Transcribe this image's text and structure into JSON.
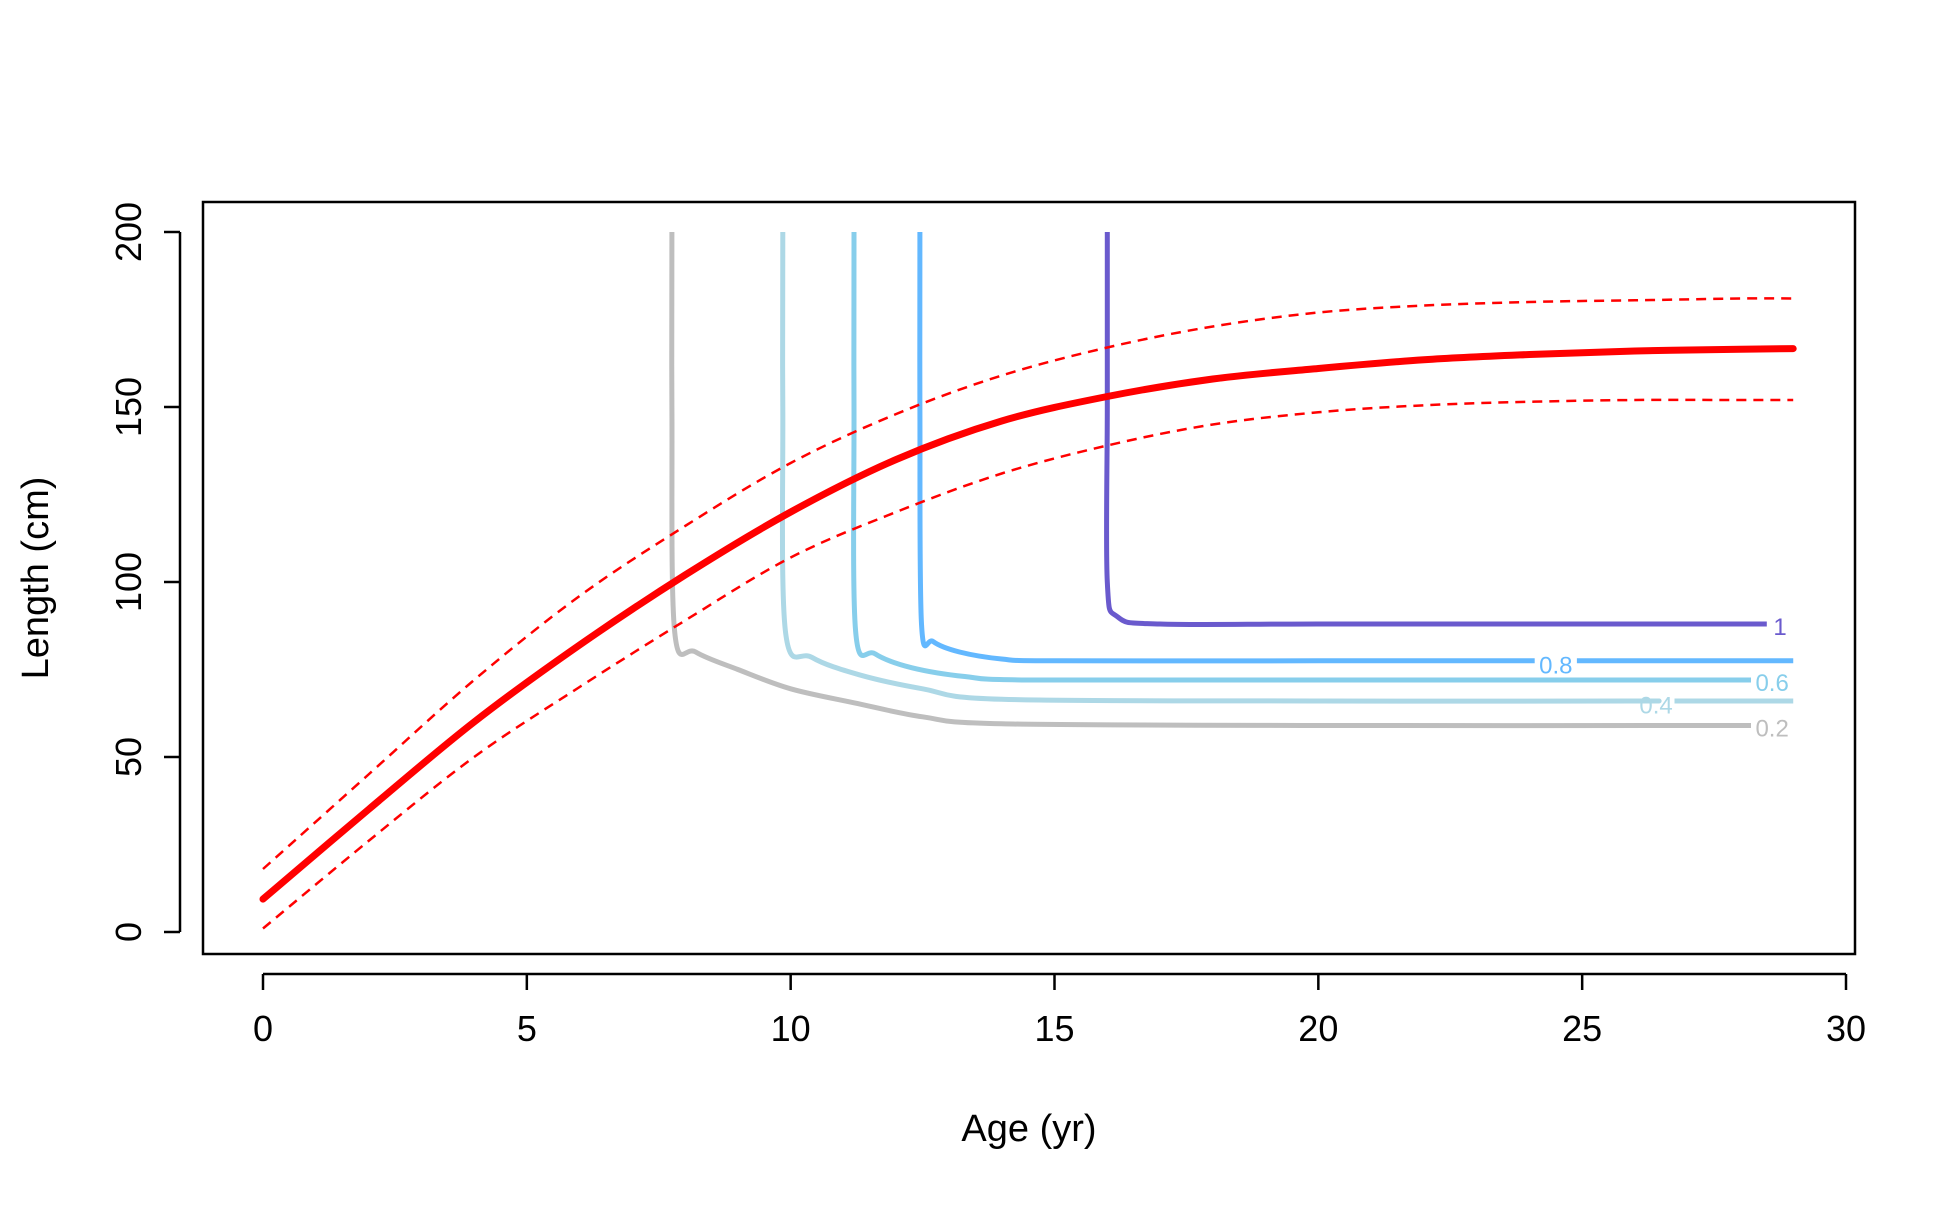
{
  "chart_data": {
    "type": "line",
    "title": "",
    "xlabel": "Age (yr)",
    "ylabel": "Length (cm)",
    "xlim": [
      0,
      30
    ],
    "ylim": [
      0,
      200
    ],
    "x_ticks": [
      0,
      5,
      10,
      15,
      20,
      25,
      30
    ],
    "y_ticks": [
      0,
      50,
      100,
      150,
      200
    ],
    "x_tick_labels": [
      "0",
      "5",
      "10",
      "15",
      "20",
      "25",
      "30"
    ],
    "y_tick_labels": [
      "0",
      "50",
      "100",
      "150",
      "200"
    ],
    "grid": false,
    "legend": "none",
    "colors": {
      "growth": "#FF0000",
      "level_1": "#6A5ACD",
      "level_0_8": "#63B8FF",
      "level_0_6": "#87CEEB",
      "level_0_4": "#ADD8E6",
      "level_0_2": "#BEBEBE"
    },
    "growth_curve": {
      "x": [
        0,
        2,
        4,
        6,
        8,
        10,
        12,
        14,
        16,
        18,
        20,
        22,
        24,
        26,
        28,
        29
      ],
      "y": [
        9.4,
        35,
        60,
        82,
        102,
        120,
        135,
        146,
        153,
        158,
        161,
        163.5,
        165,
        166,
        166.5,
        166.7
      ]
    },
    "upper_bound": {
      "x": [
        0,
        2,
        4,
        6,
        8,
        10,
        12,
        14,
        16,
        18,
        20,
        22,
        24,
        26,
        28,
        29
      ],
      "y": [
        18,
        45,
        72,
        96,
        116,
        134,
        148,
        159,
        167,
        173,
        177,
        179,
        180,
        180.5,
        181,
        181
      ]
    },
    "lower_bound": {
      "x": [
        0,
        2,
        4,
        6,
        8,
        10,
        12,
        14,
        16,
        18,
        20,
        22,
        24,
        26,
        28,
        29
      ],
      "y": [
        1,
        26,
        50,
        70,
        89,
        107,
        120,
        131,
        139,
        145,
        148.5,
        150.5,
        151.5,
        152,
        152,
        152
      ]
    },
    "contours": [
      {
        "label": "1",
        "x": [
          16,
          16,
          16,
          16.2,
          17,
          20,
          25,
          28.5
        ],
        "y": [
          200,
          150,
          100,
          90,
          88,
          88,
          88,
          88
        ],
        "label_x": 28.75,
        "label_y": 87.5
      },
      {
        "label": "0.8",
        "x": [
          12.45,
          12.45,
          12.48,
          12.7,
          13.2,
          14,
          15,
          20,
          25,
          29
        ],
        "y": [
          200,
          150,
          88,
          83,
          80,
          78,
          77.5,
          77.5,
          77.5,
          77.5
        ],
        "label_x": 24.5,
        "label_y": 76.5,
        "gap": [
          24.1,
          24.9
        ]
      },
      {
        "label": "0.6",
        "x": [
          11.2,
          11.2,
          11.23,
          11.6,
          12.3,
          13.3,
          14.5,
          20,
          28.2
        ],
        "y": [
          200,
          150,
          86,
          79.5,
          75.5,
          73,
          72,
          72,
          72
        ],
        "label_x": 28.6,
        "label_y": 71.5
      },
      {
        "label": "0.4",
        "x": [
          9.85,
          9.85,
          9.9,
          10.4,
          11.3,
          12.5,
          14,
          20,
          26,
          29
        ],
        "y": [
          200,
          150,
          86,
          78.5,
          73.5,
          69.5,
          66.5,
          66,
          66,
          66
        ],
        "label_x": 26.4,
        "label_y": 65,
        "gap": [
          26.05,
          26.75
        ]
      },
      {
        "label": "0.2",
        "x": [
          7.75,
          7.75,
          7.8,
          8.2,
          9,
          10,
          11.2,
          12.5,
          14,
          20,
          28.2
        ],
        "y": [
          200,
          150,
          86,
          80,
          75,
          69.5,
          65.5,
          61.5,
          59.5,
          59,
          59
        ],
        "label_x": 28.6,
        "label_y": 58.5
      }
    ]
  }
}
